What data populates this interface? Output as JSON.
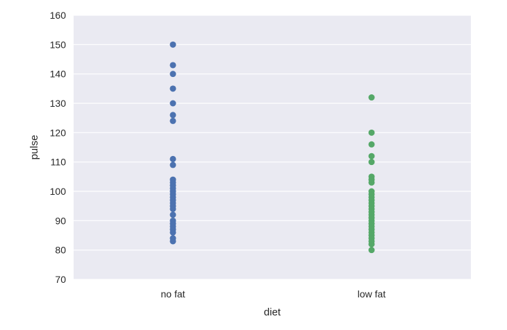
{
  "chart_data": {
    "type": "scatter",
    "title": "",
    "xlabel": "diet",
    "ylabel": "pulse",
    "categories": [
      "no fat",
      "low fat"
    ],
    "ylim": [
      70,
      160
    ],
    "yticks": [
      70,
      80,
      90,
      100,
      110,
      120,
      130,
      140,
      150,
      160
    ],
    "grid": true,
    "legend": "none",
    "series": [
      {
        "category": "no fat",
        "color": "#4c72b0",
        "values": [
          150,
          143,
          140,
          135,
          130,
          126,
          124,
          111,
          109,
          104,
          103,
          102,
          101,
          100,
          99,
          98,
          97,
          96,
          95,
          94,
          92,
          90,
          89,
          88,
          87,
          86,
          84,
          83
        ]
      },
      {
        "category": "low fat",
        "color": "#55a868",
        "values": [
          132,
          120,
          116,
          112,
          110,
          105,
          104,
          103,
          100,
          99,
          98,
          97,
          96,
          95,
          94,
          93,
          92,
          91,
          90,
          89,
          88,
          87,
          86,
          85,
          84,
          83,
          82,
          80
        ]
      }
    ]
  }
}
